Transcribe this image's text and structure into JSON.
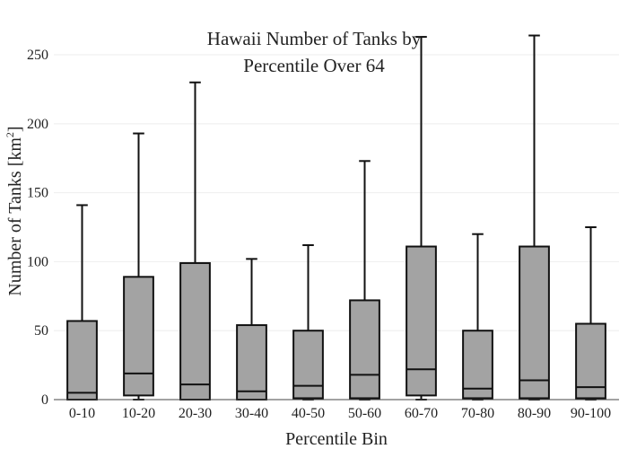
{
  "chart_data": {
    "type": "box",
    "title_lines": [
      "Hawaii Number of Tanks by",
      "Percentile Over 64"
    ],
    "xlabel": "Percentile Bin",
    "ylabel_main": "Number of Tanks  [km",
    "ylabel_sup": "2",
    "ylabel_end": "]",
    "ylim": [
      0,
      265
    ],
    "yticks": [
      0,
      50,
      100,
      150,
      200,
      250
    ],
    "grid": true,
    "colors": {
      "box_fill": "#a3a3a3",
      "box_line": "#111111",
      "grid": "#eeeeee"
    },
    "categories": [
      "0-10",
      "10-20",
      "20-30",
      "30-40",
      "40-50",
      "50-60",
      "60-70",
      "70-80",
      "80-90",
      "90-100"
    ],
    "boxes": [
      {
        "min": 0,
        "q1": 0,
        "median": 5,
        "q3": 57,
        "max": 141
      },
      {
        "min": 0,
        "q1": 3,
        "median": 19,
        "q3": 89,
        "max": 193
      },
      {
        "min": 0,
        "q1": 0,
        "median": 11,
        "q3": 99,
        "max": 230
      },
      {
        "min": 0,
        "q1": 0,
        "median": 6,
        "q3": 54,
        "max": 102
      },
      {
        "min": 0,
        "q1": 1,
        "median": 10,
        "q3": 50,
        "max": 112
      },
      {
        "min": 0,
        "q1": 1,
        "median": 18,
        "q3": 72,
        "max": 173
      },
      {
        "min": 0,
        "q1": 3,
        "median": 22,
        "q3": 111,
        "max": 263
      },
      {
        "min": 0,
        "q1": 1,
        "median": 8,
        "q3": 50,
        "max": 120
      },
      {
        "min": 0,
        "q1": 1,
        "median": 14,
        "q3": 111,
        "max": 264
      },
      {
        "min": 0,
        "q1": 1,
        "median": 9,
        "q3": 55,
        "max": 125
      }
    ]
  }
}
